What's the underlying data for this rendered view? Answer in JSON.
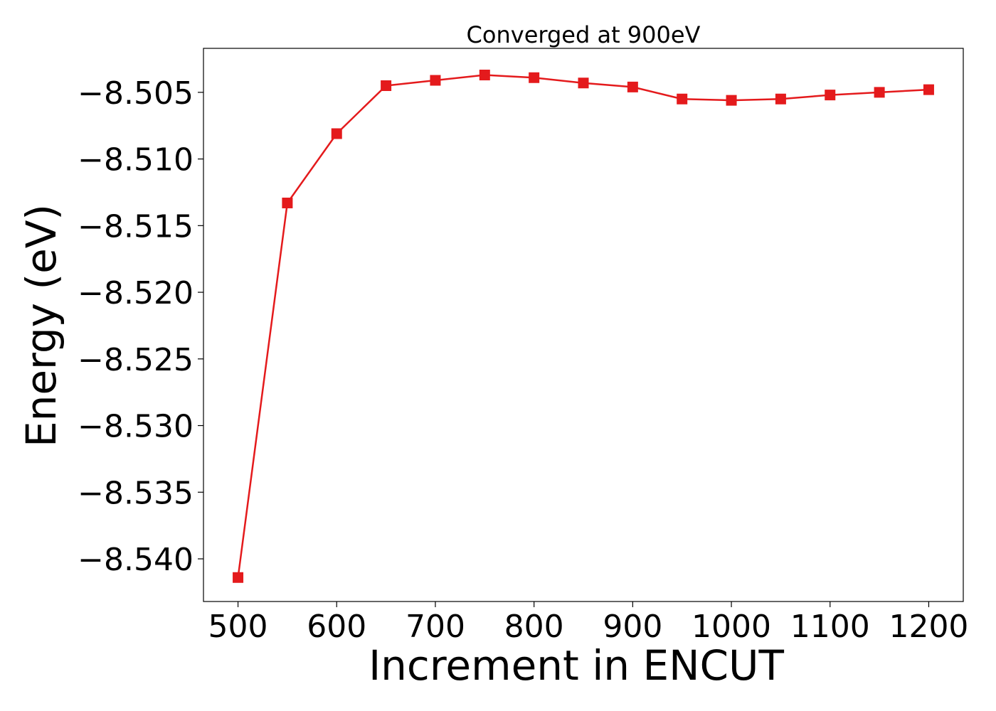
{
  "chart_data": {
    "type": "line",
    "title": "Converged at 900eV",
    "xlabel": "Increment in ENCUT",
    "ylabel": "Energy (eV)",
    "xlim": [
      465,
      1235
    ],
    "ylim": [
      -8.5432,
      -8.5017
    ],
    "xticks": [
      500,
      600,
      700,
      800,
      900,
      1000,
      1100,
      1200
    ],
    "yticks": [
      -8.505,
      -8.51,
      -8.515,
      -8.52,
      -8.525,
      -8.53,
      -8.535,
      -8.54
    ],
    "grid": false,
    "legend": "none",
    "series": [
      {
        "color": "#e41a1c",
        "marker": "square",
        "x": [
          500,
          550,
          600,
          650,
          700,
          750,
          800,
          850,
          900,
          950,
          1000,
          1050,
          1100,
          1150,
          1200
        ],
        "y": [
          -8.5414,
          -8.5133,
          -8.5081,
          -8.5045,
          -8.5041,
          -8.5037,
          -8.5039,
          -8.5043,
          -8.5046,
          -8.5055,
          -8.5056,
          -8.5055,
          -8.5052,
          -8.505,
          -8.5048
        ]
      }
    ]
  }
}
